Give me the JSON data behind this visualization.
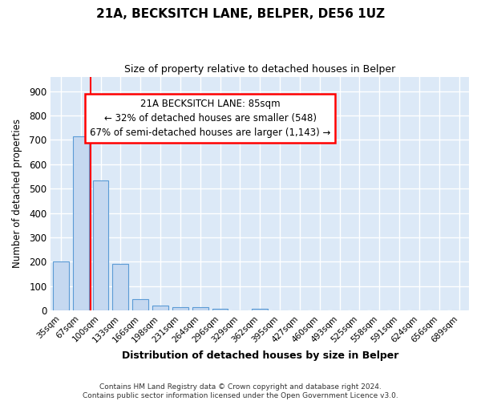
{
  "title": "21A, BECKSITCH LANE, BELPER, DE56 1UZ",
  "subtitle": "Size of property relative to detached houses in Belper",
  "xlabel": "Distribution of detached houses by size in Belper",
  "ylabel": "Number of detached properties",
  "bar_color": "#c5d8f0",
  "bar_edge_color": "#5b9bd5",
  "background_color": "#dce9f7",
  "grid_color": "#ffffff",
  "categories": [
    "35sqm",
    "67sqm",
    "100sqm",
    "133sqm",
    "166sqm",
    "198sqm",
    "231sqm",
    "264sqm",
    "296sqm",
    "329sqm",
    "362sqm",
    "395sqm",
    "427sqm",
    "460sqm",
    "493sqm",
    "525sqm",
    "558sqm",
    "591sqm",
    "624sqm",
    "656sqm",
    "689sqm"
  ],
  "values": [
    200,
    715,
    535,
    192,
    46,
    20,
    13,
    13,
    8,
    0,
    8,
    0,
    0,
    0,
    0,
    0,
    0,
    0,
    0,
    0,
    0
  ],
  "red_line_x": 1.5,
  "annotation_line1": "21A BECKSITCH LANE: 85sqm",
  "annotation_line2": "← 32% of detached houses are smaller (548)",
  "annotation_line3": "67% of semi-detached houses are larger (1,143) →",
  "ylim": [
    0,
    960
  ],
  "yticks": [
    0,
    100,
    200,
    300,
    400,
    500,
    600,
    700,
    800,
    900
  ],
  "footer": "Contains HM Land Registry data © Crown copyright and database right 2024.\nContains public sector information licensed under the Open Government Licence v3.0."
}
